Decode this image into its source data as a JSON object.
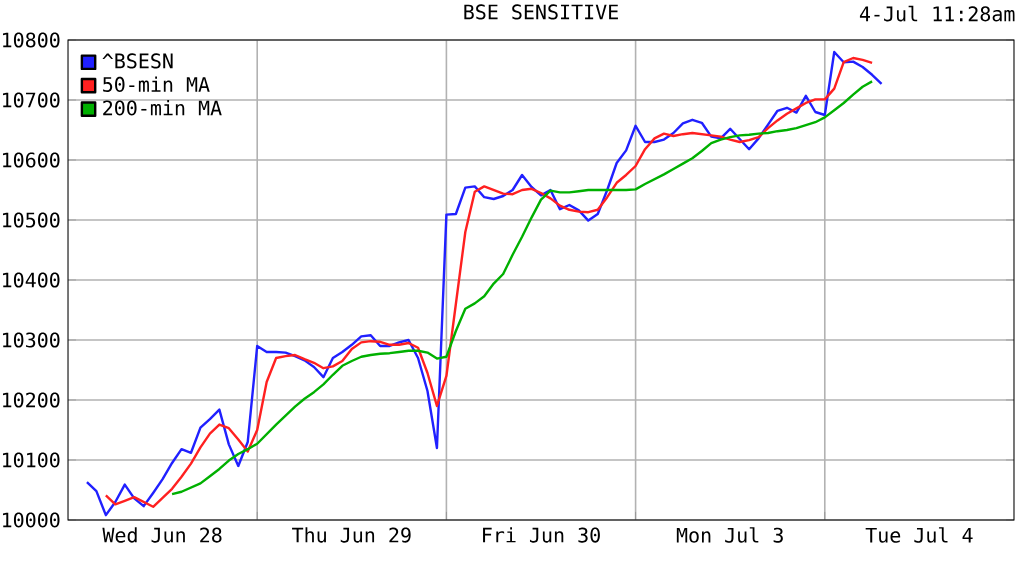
{
  "chart_data": {
    "type": "line",
    "title": "BSE SENSITIVE",
    "annotations": [
      "4-Jul 11:28am"
    ],
    "categories": [
      null,
      null,
      null,
      null,
      null,
      null,
      null,
      null,
      null,
      null,
      "Wed Jun 28",
      null,
      null,
      null,
      null,
      null,
      null,
      null,
      null,
      null,
      null,
      null,
      null,
      null,
      null,
      null,
      null,
      null,
      null,
      null,
      "Thu Jun 29",
      null,
      null,
      null,
      null,
      null,
      null,
      null,
      null,
      null,
      null,
      null,
      null,
      null,
      null,
      null,
      null,
      null,
      null,
      null,
      "Fri Jun 30",
      null,
      null,
      null,
      null,
      null,
      null,
      null,
      null,
      null,
      null,
      null,
      null,
      null,
      null,
      null,
      null,
      null,
      null,
      null,
      "Mon Jul  3",
      null,
      null,
      null,
      null,
      null,
      null,
      null,
      null,
      null,
      null,
      null,
      null,
      null,
      null,
      null,
      null,
      null,
      null,
      null,
      "Tue Jul  4",
      null,
      null,
      null,
      null,
      null,
      null,
      null,
      null,
      null,
      null
    ],
    "ylim": [
      10000,
      10800
    ],
    "yticks": [
      10000,
      10100,
      10200,
      10300,
      10400,
      10500,
      10600,
      10700,
      10800
    ],
    "grid": true,
    "legend": "top left",
    "marker": "none",
    "line_style": "solid",
    "series": [
      {
        "name": "^BSESN",
        "color": "#2020ff",
        "values": [
          null,
          null,
          10063,
          10048,
          10008,
          10030,
          10059,
          10036,
          10023,
          10045,
          10068,
          10095,
          10118,
          10112,
          10154,
          10168,
          10184,
          10126,
          10090,
          10130,
          10290,
          10280,
          10280,
          10279,
          10273,
          10266,
          10255,
          10238,
          10270,
          10280,
          10292,
          10306,
          10308,
          10290,
          10290,
          10296,
          10300,
          10270,
          10215,
          10120,
          10509,
          10510,
          10554,
          10556,
          10538,
          10535,
          10540,
          10550,
          10575,
          10555,
          10541,
          10550,
          10518,
          10525,
          10516,
          10499,
          10510,
          10550,
          10595,
          10616,
          10657,
          10630,
          10630,
          10634,
          10645,
          10661,
          10667,
          10662,
          10639,
          10636,
          10652,
          10635,
          10618,
          10636,
          10659,
          10682,
          10687,
          10679,
          10707,
          10680,
          10675,
          10780,
          10763,
          10764,
          10755,
          10742,
          10727,
          null,
          null,
          null,
          null,
          null,
          null,
          null,
          null,
          null,
          null,
          null,
          null,
          null,
          null
        ]
      },
      {
        "name": "50-min MA",
        "color": "#ff2020",
        "values": [
          null,
          null,
          null,
          null,
          10041,
          10026,
          10032,
          10038,
          10030,
          10022,
          10037,
          10052,
          10072,
          10094,
          10121,
          10144,
          10159,
          10153,
          10134,
          10114,
          10150,
          10230,
          10270,
          10273,
          10275,
          10268,
          10262,
          10253,
          10256,
          10265,
          10285,
          10296,
          10298,
          10297,
          10292,
          10292,
          10295,
          10287,
          10245,
          10190,
          10240,
          10360,
          10480,
          10547,
          10556,
          10550,
          10544,
          10543,
          10550,
          10552,
          10545,
          10536,
          10524,
          10517,
          10514,
          10513,
          10517,
          10538,
          10562,
          10575,
          10590,
          10618,
          10636,
          10644,
          10640,
          10643,
          10645,
          10643,
          10641,
          10639,
          10634,
          10630,
          10633,
          10638,
          10653,
          10666,
          10677,
          10686,
          10695,
          10701,
          10701,
          10719,
          10763,
          10770,
          10767,
          10762,
          null,
          null,
          null,
          null,
          null,
          null,
          null,
          null,
          null,
          null,
          null,
          null,
          null,
          null,
          null
        ]
      },
      {
        "name": "200-min MA",
        "color": "#00b000",
        "values": [
          null,
          null,
          null,
          null,
          null,
          null,
          null,
          null,
          null,
          null,
          null,
          10043,
          10047,
          10054,
          10061,
          10073,
          10085,
          10099,
          10110,
          10118,
          10127,
          10143,
          10159,
          10174,
          10189,
          10202,
          10213,
          10226,
          10242,
          10257,
          10265,
          10272,
          10275,
          10277,
          10278,
          10280,
          10282,
          10282,
          10279,
          10269,
          10272,
          10315,
          10352,
          10361,
          10373,
          10394,
          10410,
          10442,
          10472,
          10504,
          10534,
          10549,
          10546,
          10546,
          10548,
          10550,
          10550,
          10550,
          10550,
          10550,
          10551,
          10560,
          10568,
          10576,
          10585,
          10594,
          10603,
          10615,
          10628,
          10634,
          10638,
          10641,
          10642,
          10644,
          10645,
          10648,
          10650,
          10653,
          10658,
          10663,
          10671,
          10683,
          10695,
          10709,
          10722,
          10731,
          null,
          null,
          null,
          null,
          null,
          null,
          null,
          null,
          null,
          null,
          null,
          null,
          null,
          null,
          null
        ]
      }
    ]
  }
}
